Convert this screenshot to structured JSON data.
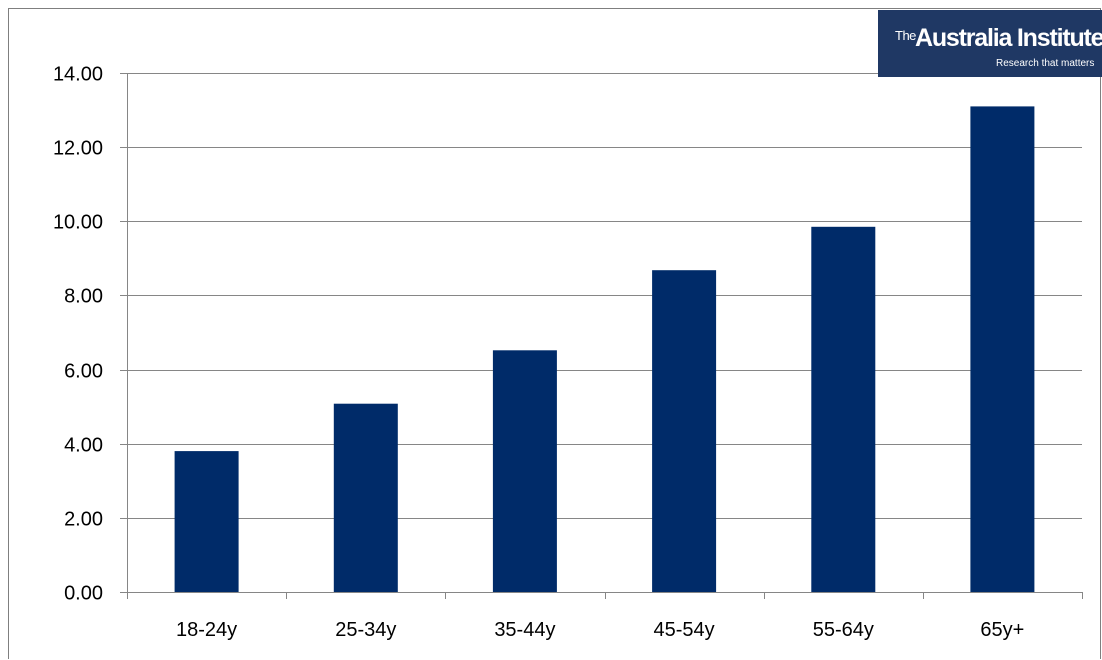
{
  "logo": {
    "prefix": "The",
    "name": "Australia Institute",
    "tagline": "Research that matters"
  },
  "colors": {
    "bar": "#002b69",
    "gridline": "#868686",
    "axis": "#868686",
    "logo_background": "#1f3864"
  },
  "chart_data": {
    "type": "bar",
    "categories": [
      "18-24y",
      "25-34y",
      "35-44y",
      "45-54y",
      "55-64y",
      "65y+"
    ],
    "values": [
      3.8,
      5.08,
      6.52,
      8.68,
      9.85,
      13.1
    ],
    "title": "",
    "xlabel": "",
    "ylabel": "",
    "ylim": [
      0,
      14
    ],
    "ytick_values": [
      0,
      2,
      4,
      6,
      8,
      10,
      12,
      14
    ],
    "ytick_labels": [
      "0.00",
      "2.00",
      "4.00",
      "6.00",
      "8.00",
      "10.00",
      "12.00",
      "14.00"
    ],
    "grid": true,
    "legend": "none"
  }
}
